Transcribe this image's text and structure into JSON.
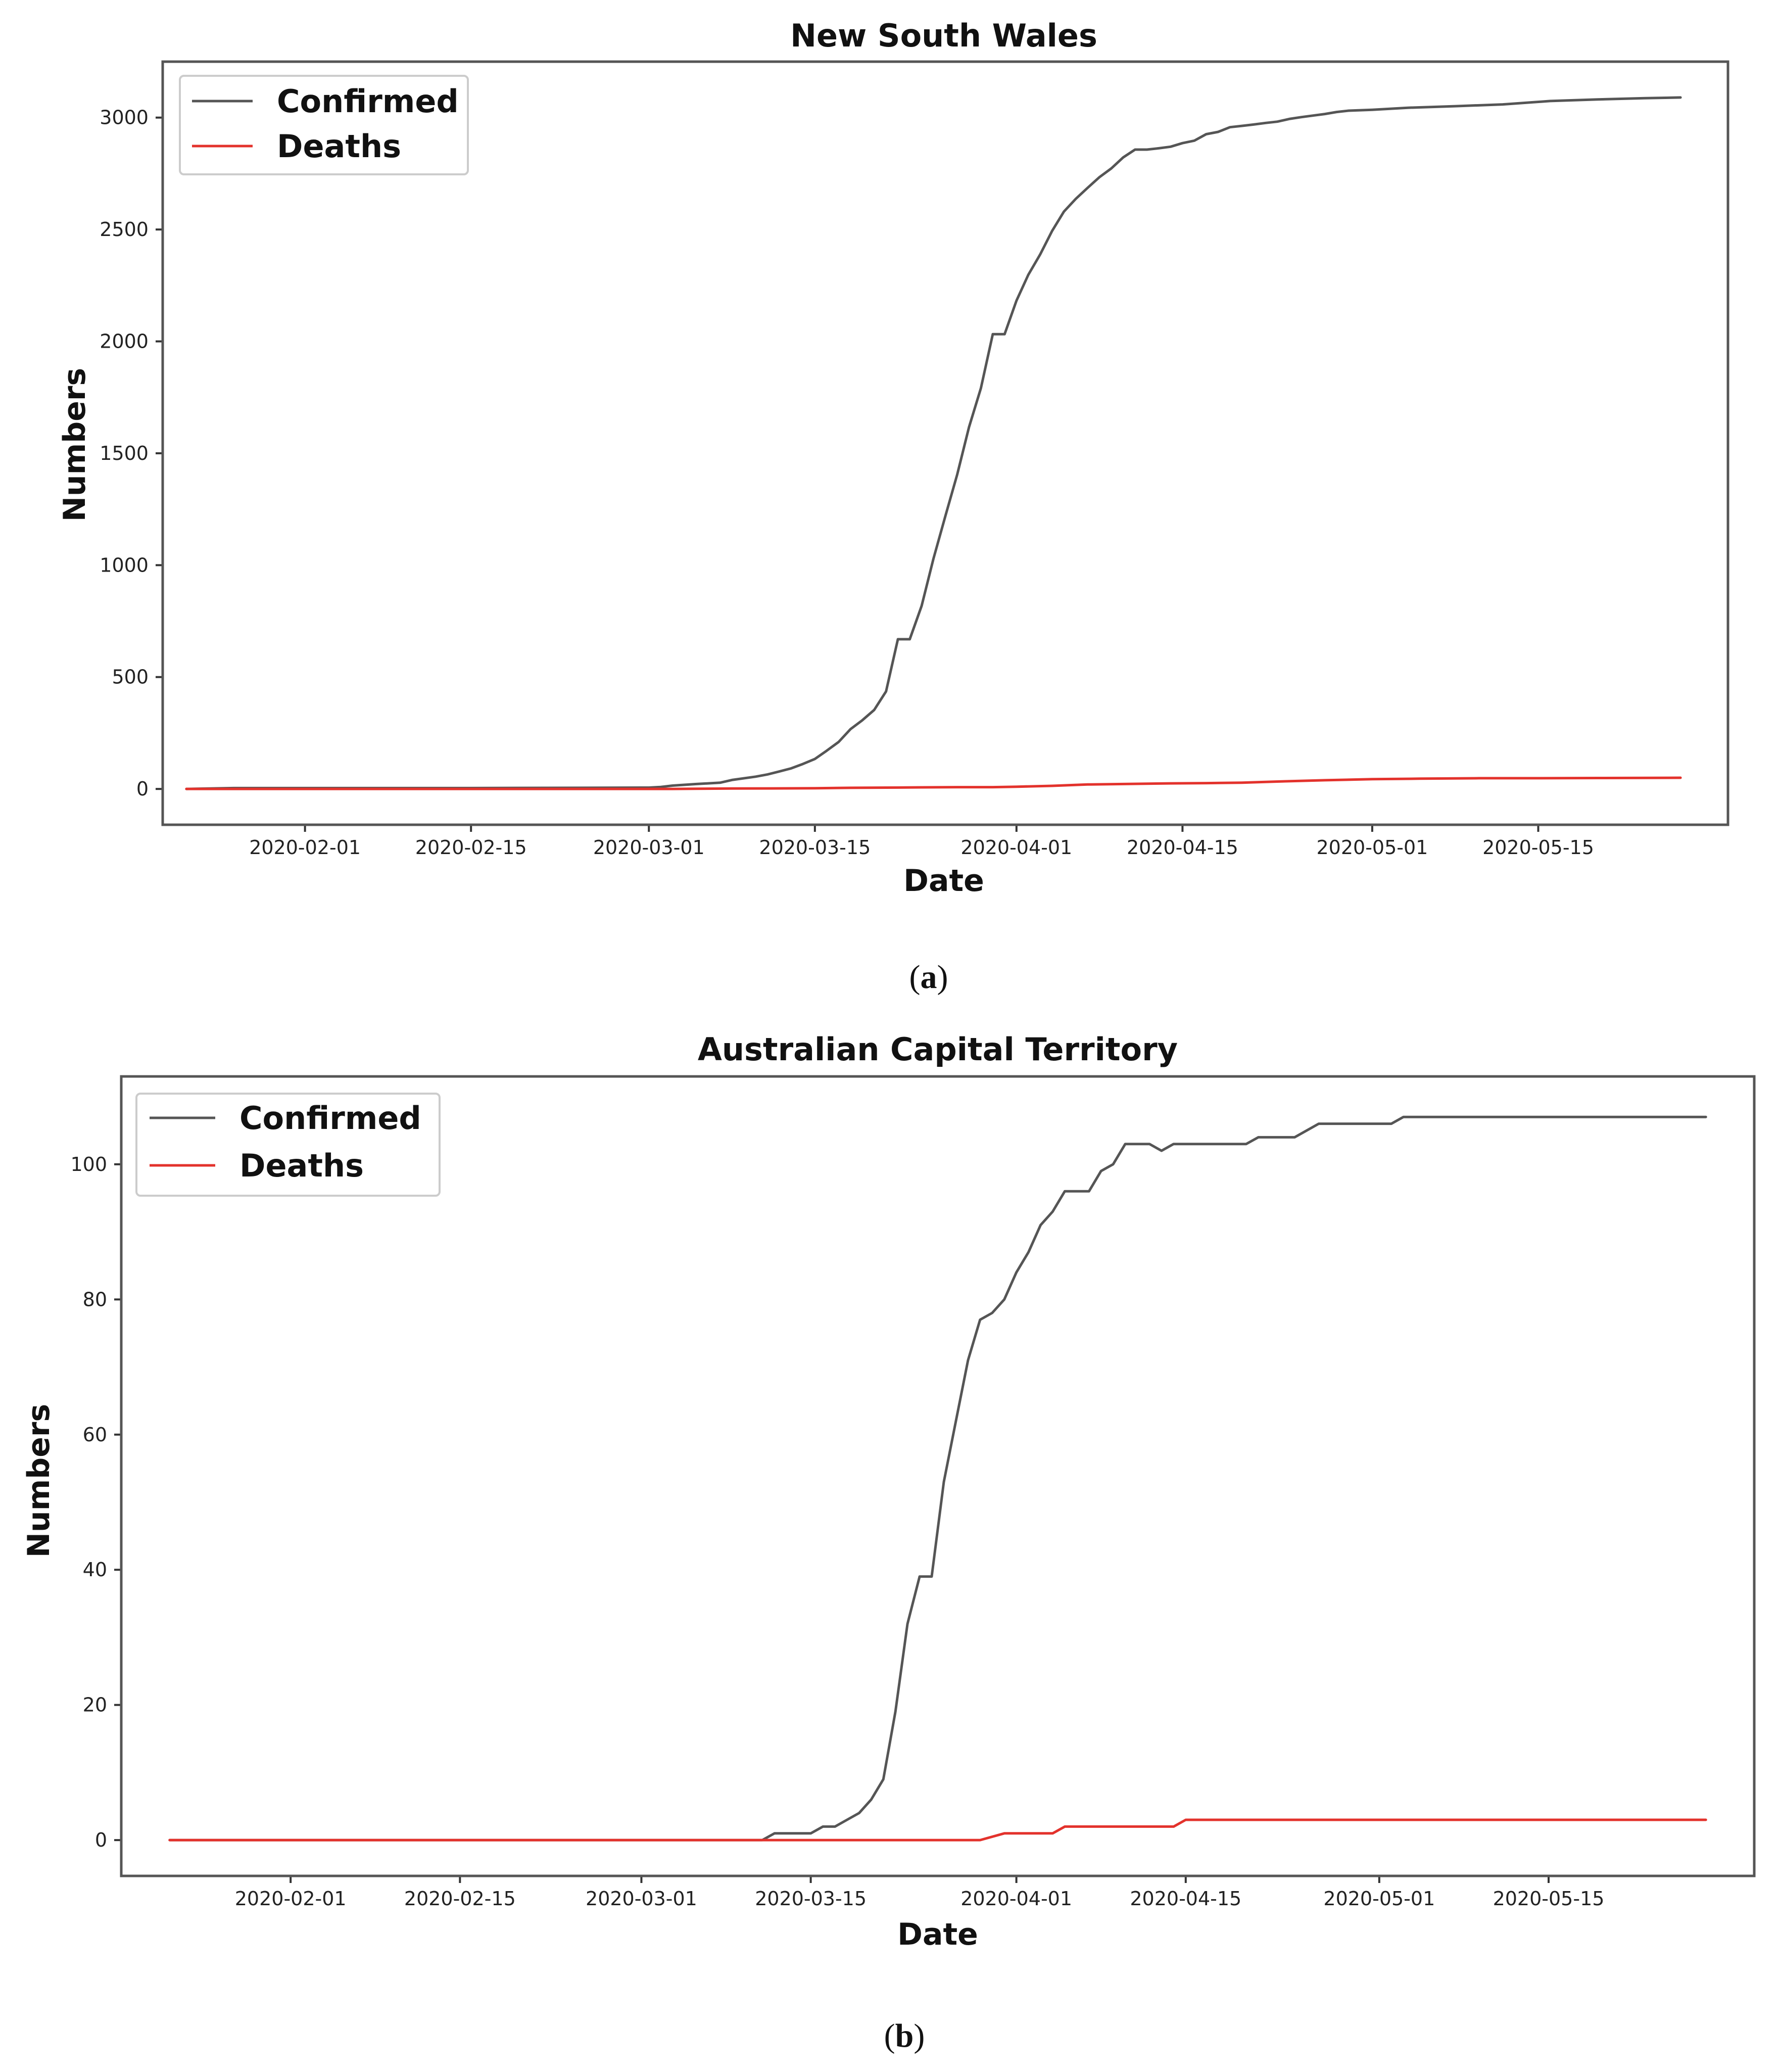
{
  "chart_data": [
    {
      "type": "line",
      "title": "New South Wales",
      "xlabel": "Date",
      "ylabel": "Numbers",
      "caption_letter": "a",
      "xlim": [
        "2020-01-20",
        "2020-05-31"
      ],
      "ylim": [
        -160,
        3250
      ],
      "x_ticks": [
        "2020-02-01",
        "2020-02-15",
        "2020-03-01",
        "2020-03-15",
        "2020-04-01",
        "2020-04-15",
        "2020-05-01",
        "2020-05-15"
      ],
      "y_ticks": [
        0,
        500,
        1000,
        1500,
        2000,
        2500,
        3000
      ],
      "grid": false,
      "legend_position": "top-left",
      "series": [
        {
          "name": "Confirmed",
          "color": "#555555",
          "points": [
            [
              "2020-01-22",
              0
            ],
            [
              "2020-01-26",
              4
            ],
            [
              "2020-02-01",
              4
            ],
            [
              "2020-02-15",
              4
            ],
            [
              "2020-03-01",
              6
            ],
            [
              "2020-03-02",
              9
            ],
            [
              "2020-03-03",
              15
            ],
            [
              "2020-03-05",
              22
            ],
            [
              "2020-03-07",
              28
            ],
            [
              "2020-03-08",
              40
            ],
            [
              "2020-03-10",
              55
            ],
            [
              "2020-03-11",
              65
            ],
            [
              "2020-03-12",
              78
            ],
            [
              "2020-03-13",
              92
            ],
            [
              "2020-03-14",
              112
            ],
            [
              "2020-03-15",
              134
            ],
            [
              "2020-03-16",
              171
            ],
            [
              "2020-03-17",
              210
            ],
            [
              "2020-03-18",
              267
            ],
            [
              "2020-03-19",
              307
            ],
            [
              "2020-03-20",
              353
            ],
            [
              "2020-03-21",
              436
            ],
            [
              "2020-03-22",
              669
            ],
            [
              "2020-03-23",
              669
            ],
            [
              "2020-03-24",
              818
            ],
            [
              "2020-03-25",
              1029
            ],
            [
              "2020-03-26",
              1219
            ],
            [
              "2020-03-27",
              1405
            ],
            [
              "2020-03-28",
              1617
            ],
            [
              "2020-03-29",
              1791
            ],
            [
              "2020-03-30",
              2032
            ],
            [
              "2020-03-31",
              2032
            ],
            [
              "2020-04-01",
              2182
            ],
            [
              "2020-04-02",
              2298
            ],
            [
              "2020-04-03",
              2389
            ],
            [
              "2020-04-04",
              2493
            ],
            [
              "2020-04-05",
              2580
            ],
            [
              "2020-04-06",
              2637
            ],
            [
              "2020-04-07",
              2686
            ],
            [
              "2020-04-08",
              2734
            ],
            [
              "2020-04-09",
              2773
            ],
            [
              "2020-04-10",
              2822
            ],
            [
              "2020-04-11",
              2857
            ],
            [
              "2020-04-12",
              2857
            ],
            [
              "2020-04-13",
              2863
            ],
            [
              "2020-04-14",
              2870
            ],
            [
              "2020-04-15",
              2886
            ],
            [
              "2020-04-16",
              2897
            ],
            [
              "2020-04-17",
              2926
            ],
            [
              "2020-04-18",
              2936
            ],
            [
              "2020-04-19",
              2957
            ],
            [
              "2020-04-20",
              2963
            ],
            [
              "2020-04-21",
              2969
            ],
            [
              "2020-04-22",
              2976
            ],
            [
              "2020-04-23",
              2982
            ],
            [
              "2020-04-24",
              2994
            ],
            [
              "2020-04-25",
              3002
            ],
            [
              "2020-04-26",
              3009
            ],
            [
              "2020-04-27",
              3016
            ],
            [
              "2020-04-28",
              3025
            ],
            [
              "2020-04-29",
              3031
            ],
            [
              "2020-05-01",
              3035
            ],
            [
              "2020-05-04",
              3044
            ],
            [
              "2020-05-08",
              3051
            ],
            [
              "2020-05-12",
              3059
            ],
            [
              "2020-05-16",
              3074
            ],
            [
              "2020-05-20",
              3081
            ],
            [
              "2020-05-24",
              3087
            ],
            [
              "2020-05-27",
              3090
            ]
          ]
        },
        {
          "name": "Deaths",
          "color": "#e3322c",
          "points": [
            [
              "2020-01-22",
              0
            ],
            [
              "2020-03-03",
              0
            ],
            [
              "2020-03-05",
              1
            ],
            [
              "2020-03-08",
              2
            ],
            [
              "2020-03-15",
              3
            ],
            [
              "2020-03-18",
              5
            ],
            [
              "2020-03-21",
              6
            ],
            [
              "2020-03-24",
              7
            ],
            [
              "2020-03-27",
              8
            ],
            [
              "2020-03-30",
              8
            ],
            [
              "2020-04-01",
              10
            ],
            [
              "2020-04-04",
              14
            ],
            [
              "2020-04-07",
              20
            ],
            [
              "2020-04-10",
              22
            ],
            [
              "2020-04-14",
              25
            ],
            [
              "2020-04-17",
              26
            ],
            [
              "2020-04-20",
              28
            ],
            [
              "2020-04-23",
              33
            ],
            [
              "2020-04-27",
              39
            ],
            [
              "2020-05-01",
              44
            ],
            [
              "2020-05-05",
              46
            ],
            [
              "2020-05-10",
              48
            ],
            [
              "2020-05-15",
              48
            ],
            [
              "2020-05-20",
              49
            ],
            [
              "2020-05-27",
              50
            ]
          ]
        }
      ]
    },
    {
      "type": "line",
      "title": "Australian Capital Territory",
      "xlabel": "Date",
      "ylabel": "Numbers",
      "caption_letter": "b",
      "xlim": [
        "2020-01-18",
        "2020-06-01"
      ],
      "ylim": [
        -5.3,
        113
      ],
      "x_ticks": [
        "2020-02-01",
        "2020-02-15",
        "2020-03-01",
        "2020-03-15",
        "2020-04-01",
        "2020-04-15",
        "2020-05-01",
        "2020-05-15"
      ],
      "y_ticks": [
        0,
        20,
        40,
        60,
        80,
        100
      ],
      "grid": false,
      "legend_position": "top-left",
      "series": [
        {
          "name": "Confirmed",
          "color": "#555555",
          "points": [
            [
              "2020-01-22",
              0
            ],
            [
              "2020-03-11",
              0
            ],
            [
              "2020-03-12",
              1
            ],
            [
              "2020-03-15",
              1
            ],
            [
              "2020-03-16",
              2
            ],
            [
              "2020-03-17",
              2
            ],
            [
              "2020-03-18",
              3
            ],
            [
              "2020-03-19",
              4
            ],
            [
              "2020-03-20",
              6
            ],
            [
              "2020-03-21",
              9
            ],
            [
              "2020-03-22",
              19
            ],
            [
              "2020-03-23",
              32
            ],
            [
              "2020-03-24",
              39
            ],
            [
              "2020-03-25",
              39
            ],
            [
              "2020-03-26",
              53
            ],
            [
              "2020-03-27",
              62
            ],
            [
              "2020-03-28",
              71
            ],
            [
              "2020-03-29",
              77
            ],
            [
              "2020-03-30",
              78
            ],
            [
              "2020-03-31",
              80
            ],
            [
              "2020-04-01",
              84
            ],
            [
              "2020-04-02",
              87
            ],
            [
              "2020-04-03",
              91
            ],
            [
              "2020-04-04",
              93
            ],
            [
              "2020-04-05",
              96
            ],
            [
              "2020-04-06",
              96
            ],
            [
              "2020-04-07",
              96
            ],
            [
              "2020-04-08",
              99
            ],
            [
              "2020-04-09",
              100
            ],
            [
              "2020-04-10",
              103
            ],
            [
              "2020-04-11",
              103
            ],
            [
              "2020-04-12",
              103
            ],
            [
              "2020-04-13",
              102
            ],
            [
              "2020-04-14",
              103
            ],
            [
              "2020-04-20",
              103
            ],
            [
              "2020-04-21",
              104
            ],
            [
              "2020-04-24",
              104
            ],
            [
              "2020-04-26",
              106
            ],
            [
              "2020-05-02",
              106
            ],
            [
              "2020-05-03",
              107
            ],
            [
              "2020-05-28",
              107
            ]
          ]
        },
        {
          "name": "Deaths",
          "color": "#e3322c",
          "points": [
            [
              "2020-01-22",
              0
            ],
            [
              "2020-03-29",
              0
            ],
            [
              "2020-03-31",
              1
            ],
            [
              "2020-04-04",
              1
            ],
            [
              "2020-04-05",
              2
            ],
            [
              "2020-04-14",
              2
            ],
            [
              "2020-04-15",
              3
            ],
            [
              "2020-05-28",
              3
            ]
          ]
        }
      ]
    }
  ]
}
